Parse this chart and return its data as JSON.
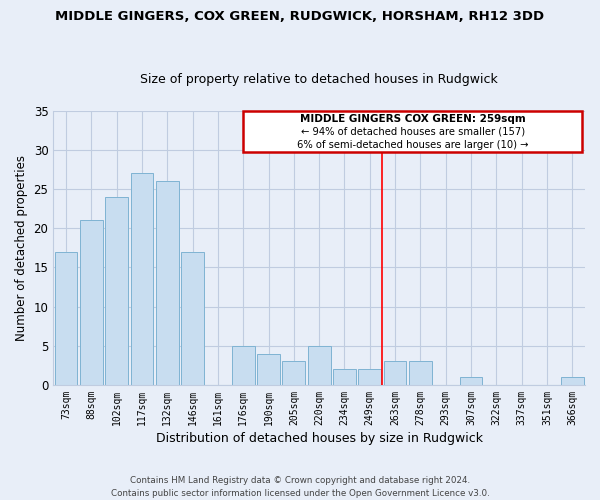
{
  "title": "MIDDLE GINGERS, COX GREEN, RUDGWICK, HORSHAM, RH12 3DD",
  "subtitle": "Size of property relative to detached houses in Rudgwick",
  "xlabel": "Distribution of detached houses by size in Rudgwick",
  "ylabel": "Number of detached properties",
  "bar_color": "#c8ddf0",
  "bar_edge_color": "#7fb3d3",
  "categories": [
    "73sqm",
    "88sqm",
    "102sqm",
    "117sqm",
    "132sqm",
    "146sqm",
    "161sqm",
    "176sqm",
    "190sqm",
    "205sqm",
    "220sqm",
    "234sqm",
    "249sqm",
    "263sqm",
    "278sqm",
    "293sqm",
    "307sqm",
    "322sqm",
    "337sqm",
    "351sqm",
    "366sqm"
  ],
  "values": [
    17,
    21,
    24,
    27,
    26,
    17,
    0,
    5,
    4,
    3,
    5,
    2,
    2,
    3,
    3,
    0,
    1,
    0,
    0,
    0,
    1
  ],
  "ylim": [
    0,
    35
  ],
  "yticks": [
    0,
    5,
    10,
    15,
    20,
    25,
    30,
    35
  ],
  "vline_x": 12.5,
  "annotation_title": "MIDDLE GINGERS COX GREEN: 259sqm",
  "annotation_line1": "← 94% of detached houses are smaller (157)",
  "annotation_line2": "6% of semi-detached houses are larger (10) →",
  "footer1": "Contains HM Land Registry data © Crown copyright and database right 2024.",
  "footer2": "Contains public sector information licensed under the Open Government Licence v3.0.",
  "background_color": "#e8eef8",
  "grid_color": "#c0cce0"
}
